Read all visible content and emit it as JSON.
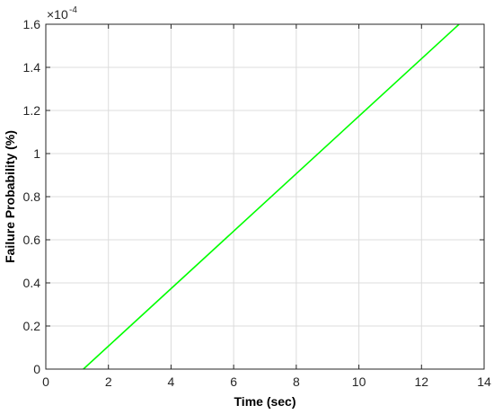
{
  "chart_data": {
    "type": "line",
    "title": "",
    "xlabel": "Time (sec)",
    "ylabel": "Failure Probability (%)",
    "xlim": [
      0,
      14
    ],
    "ylim": [
      0,
      1.6
    ],
    "xticks": [
      0,
      2,
      4,
      6,
      8,
      10,
      12,
      14
    ],
    "yticks": [
      0,
      0.2,
      0.4,
      0.6,
      0.8,
      1,
      1.2,
      1.4,
      1.6
    ],
    "xtick_labels": [
      "0",
      "2",
      "4",
      "6",
      "8",
      "10",
      "12",
      "14"
    ],
    "ytick_labels": [
      "0",
      "0.2",
      "0.4",
      "0.6",
      "0.8",
      "1",
      "1.2",
      "1.4",
      "1.6"
    ],
    "y_multiplier_base": "×10",
    "y_multiplier_exponent": "-4",
    "grid": true,
    "series": [
      {
        "color": "#00ff00",
        "x": [
          1.2,
          13.2
        ],
        "y": [
          0,
          1.6
        ]
      }
    ]
  }
}
